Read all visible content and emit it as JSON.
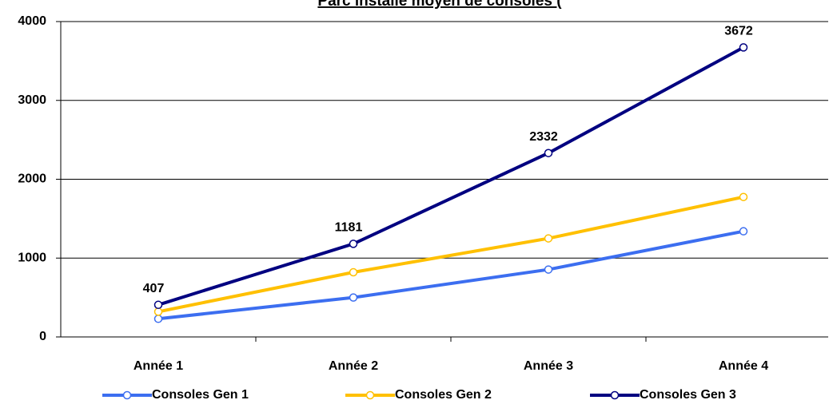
{
  "chart_data": {
    "type": "line",
    "title": "Parc installé moyen de consoles (",
    "categories": [
      "Année 1",
      "Année 2",
      "Année 3",
      "Année 4"
    ],
    "series": [
      {
        "name": "Consoles Gen 1",
        "color": "#3c6ef0",
        "values": [
          230,
          500,
          855,
          1340
        ]
      },
      {
        "name": "Consoles Gen 2",
        "color": "#ffc000",
        "values": [
          320,
          820,
          1250,
          1775
        ]
      },
      {
        "name": "Consoles Gen 3",
        "color": "#000080",
        "values": [
          407,
          1181,
          2332,
          3672
        ],
        "labeled": true
      }
    ],
    "ylim": [
      0,
      4000
    ],
    "yticks": [
      0,
      1000,
      2000,
      3000,
      4000
    ],
    "grid": true,
    "legend": "bottom"
  }
}
